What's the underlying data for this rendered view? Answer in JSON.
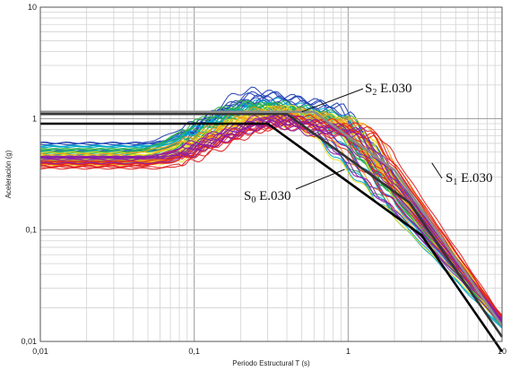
{
  "chart_data": {
    "type": "line",
    "title": "",
    "xlabel": "Periodo Estructural T (s)",
    "ylabel": "Aceleración (g)",
    "x_scale": "log",
    "y_scale": "log",
    "xlim": [
      0.01,
      10
    ],
    "ylim": [
      0.01,
      10
    ],
    "grid": true,
    "x_ticks": [
      "0,01",
      "0,1",
      "1",
      "10"
    ],
    "y_ticks": [
      "0,01",
      "0,1",
      "1",
      "10"
    ],
    "annotations": [
      {
        "main": "S",
        "sub": "2",
        "rest": " E.030",
        "target": [
          0.5,
          1.15
        ]
      },
      {
        "main": "S",
        "sub": "1",
        "rest": " E.030",
        "target": [
          3.5,
          0.4
        ]
      },
      {
        "main": "S",
        "sub": "0",
        "rest": " E.030",
        "target": [
          0.95,
          0.35
        ]
      }
    ],
    "code_spectra": [
      {
        "name": "S0 E.030",
        "color": "#000000",
        "points": [
          [
            0.01,
            0.9
          ],
          [
            0.3,
            0.9
          ],
          [
            3.0,
            0.09
          ],
          [
            10,
            0.0081
          ]
        ]
      },
      {
        "name": "S1 E.030",
        "color": "#333333",
        "points": [
          [
            0.01,
            1.1
          ],
          [
            0.4,
            1.1
          ],
          [
            2.5,
            0.176
          ],
          [
            10,
            0.011
          ]
        ]
      },
      {
        "name": "S2 E.030",
        "color": "#8c8c8c",
        "points": [
          [
            0.01,
            1.15
          ],
          [
            0.6,
            1.15
          ],
          [
            2.0,
            0.345
          ],
          [
            10,
            0.0138
          ]
        ]
      }
    ],
    "record_families": [
      {
        "color": "#1f3fb5",
        "pga": [
          0.45,
          0.62
        ],
        "peak": [
          1.3,
          1.85
        ],
        "peak_t": [
          0.2,
          0.32
        ],
        "tail10": [
          0.013,
          0.016
        ]
      },
      {
        "color": "#00a6c8",
        "pga": [
          0.42,
          0.58
        ],
        "peak": [
          1.15,
          1.5
        ],
        "peak_t": [
          0.2,
          0.35
        ],
        "tail10": [
          0.013,
          0.015
        ]
      },
      {
        "color": "#2db34a",
        "pga": [
          0.4,
          0.55
        ],
        "peak": [
          1.05,
          1.4
        ],
        "peak_t": [
          0.22,
          0.4
        ],
        "tail10": [
          0.013,
          0.016
        ]
      },
      {
        "color": "#f2e21a",
        "pga": [
          0.38,
          0.5
        ],
        "peak": [
          1.0,
          1.3
        ],
        "peak_t": [
          0.25,
          0.42
        ],
        "tail10": [
          0.014,
          0.016
        ]
      },
      {
        "color": "#f39a1f",
        "pga": [
          0.38,
          0.48
        ],
        "peak": [
          0.95,
          1.25
        ],
        "peak_t": [
          0.28,
          0.45
        ],
        "tail10": [
          0.014,
          0.017
        ]
      },
      {
        "color": "#e01e1e",
        "pga": [
          0.34,
          0.42
        ],
        "peak": [
          0.85,
          1.1
        ],
        "peak_t": [
          0.3,
          0.5
        ],
        "tail10": [
          0.014,
          0.017
        ]
      },
      {
        "color": "#8a1fa8",
        "pga": [
          0.38,
          0.46
        ],
        "peak": [
          0.9,
          1.1
        ],
        "peak_t": [
          0.28,
          0.45
        ],
        "tail10": [
          0.014,
          0.016
        ]
      }
    ]
  }
}
